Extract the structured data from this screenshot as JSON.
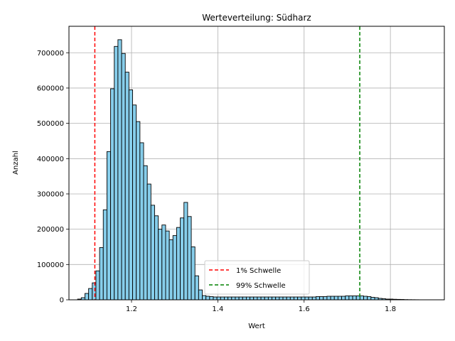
{
  "chart_data": {
    "type": "bar",
    "title": "Werteverteilung: Südharz",
    "xlabel": "Wert",
    "ylabel": "Anzahl",
    "xlim": [
      1.055,
      1.925
    ],
    "ylim": [
      0,
      775000
    ],
    "xticks": [
      1.2,
      1.4,
      1.6,
      1.8
    ],
    "xtick_labels": [
      "1.2",
      "1.4",
      "1.6",
      "1.8"
    ],
    "yticks": [
      0,
      100000,
      200000,
      300000,
      400000,
      500000,
      600000,
      700000
    ],
    "ytick_labels": [
      "0",
      "100000",
      "200000",
      "300000",
      "400000",
      "500000",
      "600000",
      "700000"
    ],
    "grid": true,
    "bar_color": "#87ceeb",
    "edge_color": "#000000",
    "bins_start": 1.075,
    "bin_width": 0.0085,
    "values": [
      2000,
      6000,
      18000,
      32000,
      48000,
      82000,
      148000,
      255000,
      420000,
      598000,
      718000,
      737000,
      698000,
      645000,
      595000,
      552000,
      505000,
      445000,
      380000,
      328000,
      268000,
      238000,
      200000,
      212000,
      195000,
      170000,
      182000,
      205000,
      232000,
      276000,
      236000,
      150000,
      68000,
      28000,
      12000,
      10000,
      9000,
      8000,
      8000,
      8000,
      8000,
      8000,
      8000,
      8000,
      8000,
      8000,
      8000,
      8000,
      8000,
      8000,
      8000,
      8000,
      8000,
      8000,
      8000,
      8000,
      8000,
      8000,
      8000,
      8000,
      8000,
      8000,
      8000,
      8000,
      8000,
      9000,
      9000,
      9000,
      10000,
      10000,
      10000,
      10000,
      10000,
      11000,
      11000,
      11000,
      11000,
      11000,
      10000,
      9000,
      7000,
      6000,
      4000,
      3000,
      2000,
      2000,
      1500,
      1200,
      1000,
      600,
      400,
      300,
      200
    ],
    "thresholds": [
      {
        "name": "1% Schwelle",
        "value": 1.115,
        "color": "#ff0000"
      },
      {
        "name": "99% Schwelle",
        "value": 1.729,
        "color": "#008000"
      }
    ],
    "legend_position": "bottom-center"
  }
}
